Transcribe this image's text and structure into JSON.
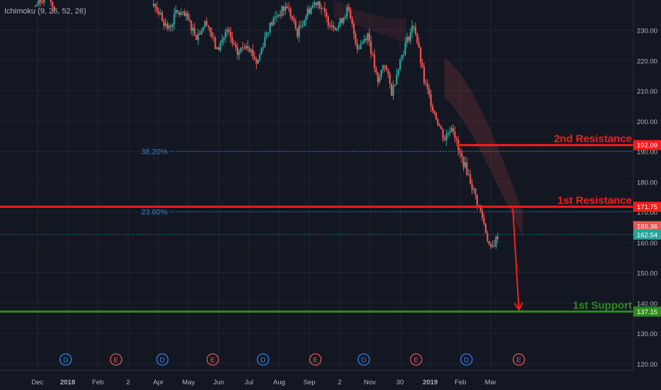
{
  "indicator": {
    "label": "Ichimoku (9, 26, 52, 26)"
  },
  "colors": {
    "background": "#131722",
    "grid": "#1f2433",
    "candle_up": "#26a69a",
    "candle_down": "#ef5350",
    "resistance": "#ff1a1a",
    "support": "#2e8b1e",
    "fib": "#3a7fc1",
    "axis_text": "#b2b5be",
    "dividend_badge": "#2f80ed",
    "earnings_badge": "#e0584e",
    "current_price": "#26a69a",
    "prev_close": "#ef5350"
  },
  "chart_data": {
    "type": "candlestick",
    "title": "",
    "ylim": [
      115,
      243
    ],
    "y_ticks": [
      120,
      130,
      140,
      150,
      160,
      170,
      180,
      190,
      200,
      210,
      220,
      230
    ],
    "y_tick_labels": [
      "120.00",
      "130.00",
      "140.00",
      "150.00",
      "160.00",
      "170.00",
      "180.00",
      "190.00",
      "200.00",
      "210.00",
      "220.00",
      "230.00"
    ],
    "x_labels": [
      "Dec",
      "2018",
      "Feb",
      "2",
      "Apr",
      "May",
      "Jun",
      "Jul",
      "Aug",
      "Sep",
      "2",
      "Nov",
      "30",
      "2019",
      "Feb",
      "Mar"
    ],
    "x_label_bold": [
      "2018",
      "2019"
    ],
    "close_path": [
      {
        "t": 0,
        "v": 238
      },
      {
        "t": 0.6,
        "v": 242
      },
      {
        "t": 1.0,
        "v": 236
      },
      {
        "t": 5.8,
        "v": 240
      },
      {
        "t": 6.6,
        "v": 230
      },
      {
        "t": 7.0,
        "v": 236
      },
      {
        "t": 7.5,
        "v": 234
      },
      {
        "t": 8.0,
        "v": 228
      },
      {
        "t": 8.5,
        "v": 233
      },
      {
        "t": 9.0,
        "v": 223
      },
      {
        "t": 9.5,
        "v": 230
      },
      {
        "t": 10.0,
        "v": 222
      },
      {
        "t": 10.5,
        "v": 226
      },
      {
        "t": 11.0,
        "v": 219
      },
      {
        "t": 11.5,
        "v": 230
      },
      {
        "t": 12.0,
        "v": 235
      },
      {
        "t": 12.5,
        "v": 238
      },
      {
        "t": 13.0,
        "v": 229
      },
      {
        "t": 13.5,
        "v": 236
      },
      {
        "t": 14.0,
        "v": 240
      },
      {
        "t": 14.5,
        "v": 233
      },
      {
        "t": 15.0,
        "v": 231
      },
      {
        "t": 15.5,
        "v": 237
      },
      {
        "t": 16.0,
        "v": 224
      },
      {
        "t": 16.5,
        "v": 229
      },
      {
        "t": 17.0,
        "v": 212
      },
      {
        "t": 17.3,
        "v": 220
      },
      {
        "t": 17.7,
        "v": 209
      },
      {
        "t": 18.0,
        "v": 218
      },
      {
        "t": 18.4,
        "v": 226
      },
      {
        "t": 18.8,
        "v": 232
      },
      {
        "t": 19.3,
        "v": 213
      },
      {
        "t": 19.8,
        "v": 203
      },
      {
        "t": 20.3,
        "v": 194
      },
      {
        "t": 20.7,
        "v": 199
      },
      {
        "t": 21.0,
        "v": 190
      },
      {
        "t": 21.4,
        "v": 184
      },
      {
        "t": 21.8,
        "v": 176
      },
      {
        "t": 22.2,
        "v": 168
      },
      {
        "t": 22.6,
        "v": 157
      },
      {
        "t": 23.0,
        "v": 163
      }
    ],
    "current_price": 162.54,
    "current_price_label": "162.54",
    "prev_close_label": "165.36",
    "levels": [
      {
        "name": "2nd Resistance",
        "value": 192.09,
        "label": "192.09",
        "style": "resistance",
        "t_start": 20.9
      },
      {
        "name": "1st Resistance",
        "value": 171.75,
        "label": "171.75",
        "style": "resistance",
        "t_start": -1
      },
      {
        "name": "1st Support",
        "value": 137.15,
        "label": "137.15",
        "style": "support",
        "t_start": -1
      }
    ],
    "fib_levels": [
      {
        "label": "38.20%",
        "value": 190
      },
      {
        "label": "23.60%",
        "value": 170.1
      }
    ],
    "projection_arrow": {
      "from": {
        "t": 23.7,
        "v": 171.2
      },
      "to": {
        "t": 24.0,
        "v": 137.8
      }
    },
    "events": [
      {
        "letter": "D",
        "t": 1.5,
        "kind": "dividend"
      },
      {
        "letter": "E",
        "t": 4.0,
        "kind": "earnings"
      },
      {
        "letter": "D",
        "t": 6.3,
        "kind": "dividend"
      },
      {
        "letter": "E",
        "t": 8.8,
        "kind": "earnings"
      },
      {
        "letter": "D",
        "t": 11.3,
        "kind": "dividend"
      },
      {
        "letter": "E",
        "t": 13.9,
        "kind": "earnings"
      },
      {
        "letter": "D",
        "t": 16.3,
        "kind": "dividend"
      },
      {
        "letter": "E",
        "t": 18.9,
        "kind": "earnings"
      },
      {
        "letter": "D",
        "t": 21.4,
        "kind": "dividend"
      },
      {
        "letter": "E",
        "t": 24.0,
        "kind": "earnings"
      }
    ]
  }
}
